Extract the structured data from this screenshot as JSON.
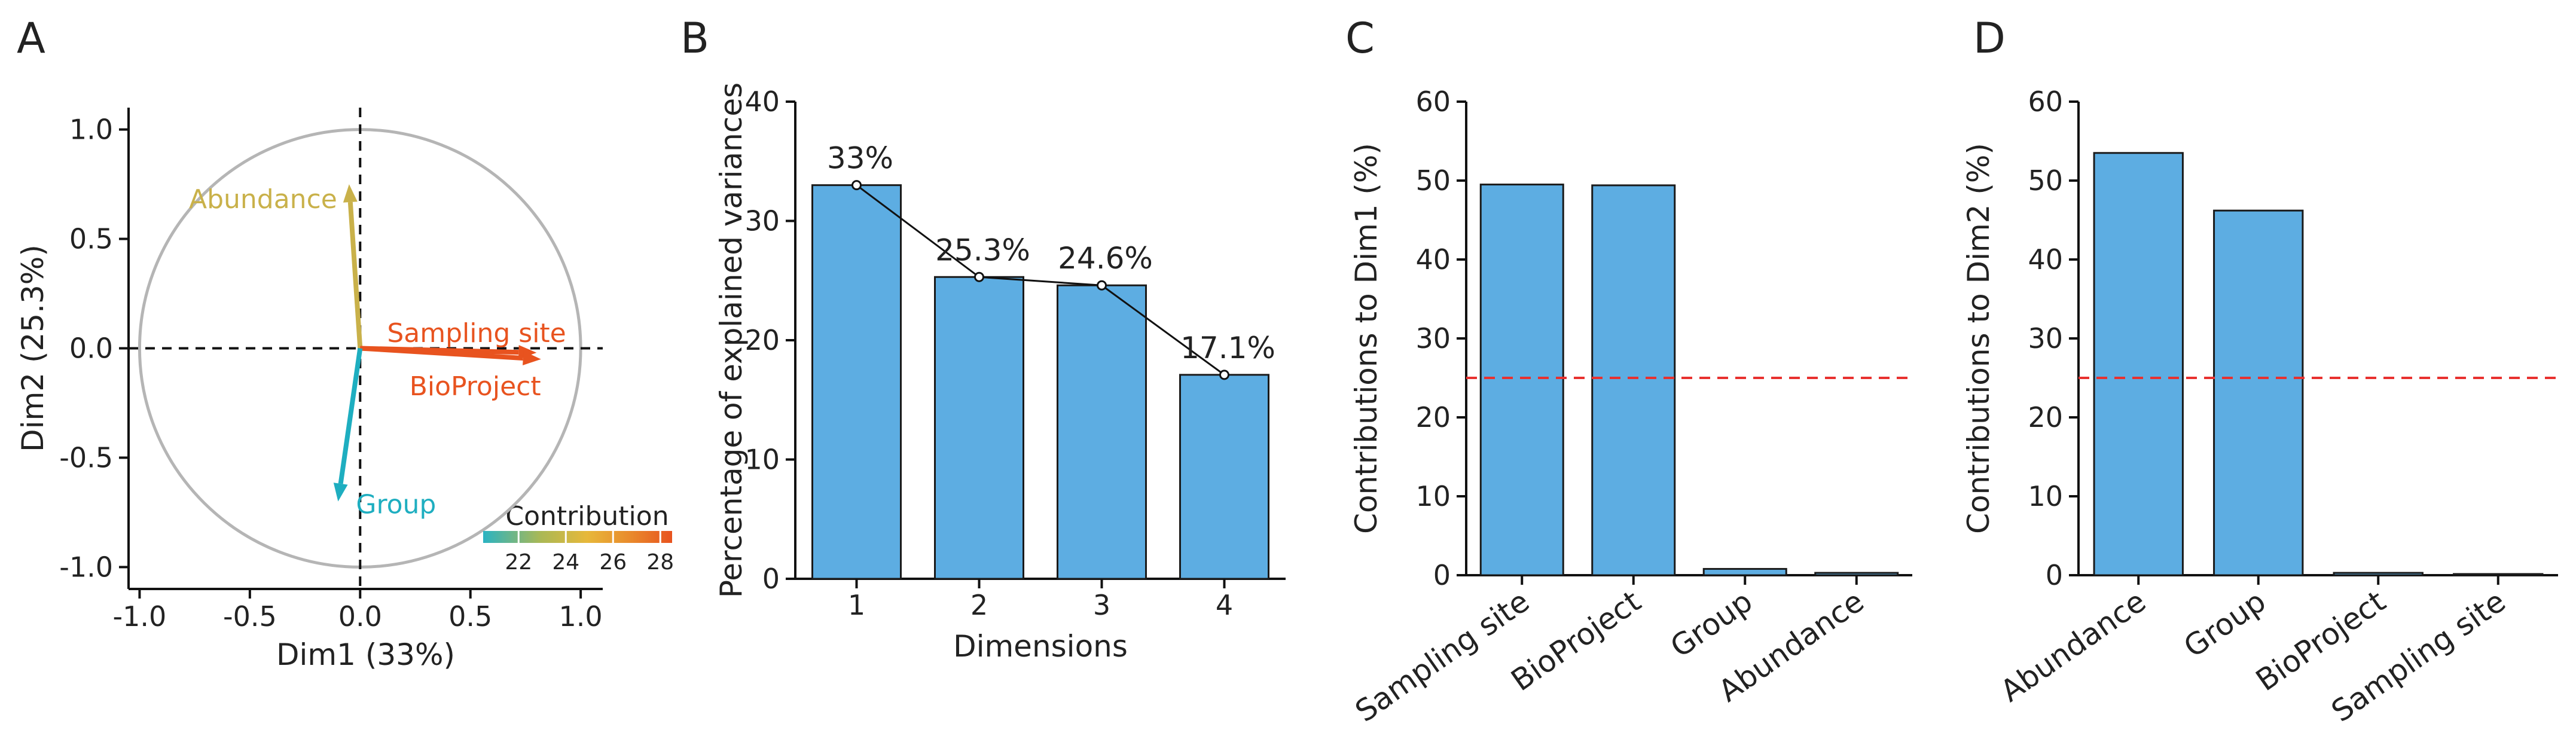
{
  "colors": {
    "bar_fill": "#5dade2",
    "bar_stroke": "#1a1a1a",
    "ref_line": "#e8312f",
    "circle": "#b5b5b5",
    "gradient": [
      "#2ab3c2",
      "#a9b856",
      "#e7b83a",
      "#e98a2c",
      "#e8531f"
    ]
  },
  "chart_data": [
    {
      "panel": "A",
      "type": "scatter",
      "subtype": "pca-correlation-circle",
      "xlabel": "Dim1 (33%)",
      "ylabel": "Dim2 (25.3%)",
      "xlim": [
        -1.05,
        1.1
      ],
      "ylim": [
        -1.1,
        1.1
      ],
      "xticks": [
        -1.0,
        -0.5,
        0.0,
        0.5,
        1.0
      ],
      "yticks": [
        -1.0,
        -0.5,
        0.0,
        0.5,
        1.0
      ],
      "xtick_labels": [
        "-1.0",
        "-0.5",
        "0.0",
        "0.5",
        "1.0"
      ],
      "ytick_labels": [
        "-1.0",
        "-0.5",
        "0.0",
        "0.5",
        "1.0"
      ],
      "vectors": [
        {
          "name": "Abundance",
          "x": -0.05,
          "y": 0.75,
          "contribution": 23.5,
          "color": "#c9b14a"
        },
        {
          "name": "Sampling site",
          "x": 0.8,
          "y": -0.02,
          "contribution": 28.0,
          "color": "#e8531f"
        },
        {
          "name": "BioProject",
          "x": 0.82,
          "y": -0.05,
          "contribution": 27.8,
          "color": "#e8531f"
        },
        {
          "name": "Group",
          "x": -0.1,
          "y": -0.7,
          "contribution": 21.0,
          "color": "#1eaec0"
        }
      ],
      "legend": {
        "title": "Contribution",
        "ticks": [
          22,
          24,
          26,
          28
        ],
        "tick_labels": [
          "22",
          "24",
          "26",
          "28"
        ],
        "range": [
          20.5,
          28.5
        ],
        "placement": "bottom-right"
      }
    },
    {
      "panel": "B",
      "type": "bar",
      "categories": [
        "1",
        "2",
        "3",
        "4"
      ],
      "values": [
        33,
        25.3,
        24.6,
        17.1
      ],
      "data_labels": [
        "33%",
        "25.3%",
        "24.6%",
        "17.1%"
      ],
      "line_overlay": true,
      "xlabel": "Dimensions",
      "ylabel": "Percentage of explained variances",
      "ylim": [
        0,
        40
      ],
      "yticks": [
        0,
        10,
        20,
        30,
        40
      ],
      "ytick_labels": [
        "0",
        "10",
        "20",
        "30",
        "40"
      ]
    },
    {
      "panel": "C",
      "type": "bar",
      "categories": [
        "Sampling site",
        "BioProject",
        "Group",
        "Abundance"
      ],
      "values": [
        49.5,
        49.4,
        0.8,
        0.3
      ],
      "reference_line": 25,
      "xlabel": "",
      "ylabel": "Contributions to Dim1 (%)",
      "ylim": [
        0,
        60
      ],
      "yticks": [
        0,
        10,
        20,
        30,
        40,
        50,
        60
      ],
      "ytick_labels": [
        "0",
        "10",
        "20",
        "30",
        "40",
        "50",
        "60"
      ]
    },
    {
      "panel": "D",
      "type": "bar",
      "categories": [
        "Abundance",
        "Group",
        "BioProject",
        "Sampling site"
      ],
      "values": [
        53.5,
        46.2,
        0.3,
        0.05
      ],
      "reference_line": 25,
      "xlabel": "",
      "ylabel": "Contributions to Dim2 (%)",
      "ylim": [
        0,
        60
      ],
      "yticks": [
        0,
        10,
        20,
        30,
        40,
        50,
        60
      ],
      "ytick_labels": [
        "0",
        "10",
        "20",
        "30",
        "40",
        "50",
        "60"
      ]
    }
  ]
}
